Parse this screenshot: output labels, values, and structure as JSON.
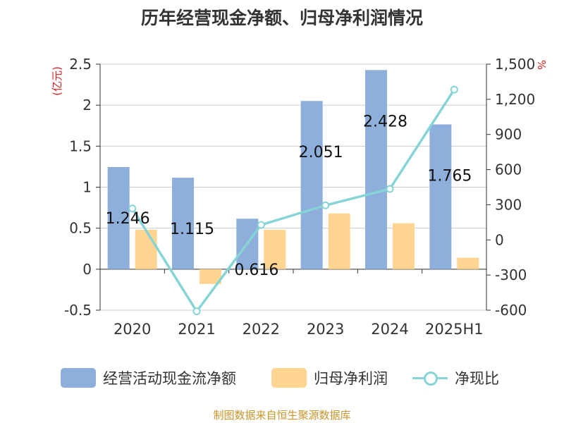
{
  "title": "历年经营现金净额、归母净利润情况",
  "source_note": "制图数据来自恒生聚源数据库",
  "colors": {
    "bar_cash": "#8eaedb",
    "bar_profit": "#ffd591",
    "line_ratio": "#86d4d6",
    "left_unit": "#e02020",
    "text": "#333333",
    "source": "#c8962c"
  },
  "chart_data": {
    "type": "bar",
    "categories": [
      "2020",
      "2021",
      "2022",
      "2023",
      "2024",
      "2025H1"
    ],
    "left_axis": {
      "unit": "(亿元)",
      "range": [
        -0.5,
        2.5
      ],
      "ticks": [
        "-0.5",
        "0",
        "0.5",
        "1",
        "1.5",
        "2",
        "2.5"
      ]
    },
    "right_axis": {
      "unit": "%",
      "range": [
        -600,
        1500
      ],
      "ticks": [
        "-600",
        "-300",
        "0",
        "300",
        "600",
        "900",
        "1,200",
        "1,500"
      ]
    },
    "series": [
      {
        "name": "经营活动现金流净额",
        "type": "bar",
        "axis": "left",
        "values": [
          1.246,
          1.115,
          0.616,
          2.051,
          2.428,
          1.765
        ],
        "labels": [
          "1.246",
          "1.115",
          "0.616",
          "2.051",
          "2.428",
          "1.765"
        ]
      },
      {
        "name": "归母净利润",
        "type": "bar",
        "axis": "left",
        "values": [
          0.48,
          -0.18,
          0.48,
          0.68,
          0.56,
          0.14
        ]
      },
      {
        "name": "净现比",
        "type": "line",
        "axis": "right",
        "values": [
          268,
          -610,
          128,
          295,
          435,
          1283
        ]
      }
    ],
    "grid": true,
    "legend_position": "bottom"
  }
}
